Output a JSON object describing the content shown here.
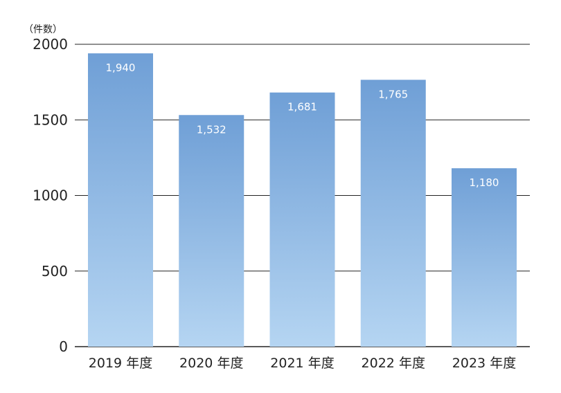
{
  "chart_data": {
    "type": "bar",
    "unit_label": "（件数）",
    "categories": [
      "2019 年度",
      "2020 年度",
      "2021 年度",
      "2022 年度",
      "2023 年度"
    ],
    "values": [
      1940,
      1532,
      1681,
      1765,
      1180
    ],
    "data_labels": [
      "1,940",
      "1,532",
      "1,681",
      "1,765",
      "1,180"
    ],
    "y_ticks": [
      0,
      500,
      1000,
      1500,
      2000
    ],
    "y_tick_labels": [
      "0",
      "500",
      "1000",
      "1500",
      "2000"
    ],
    "ylim": [
      0,
      2000
    ],
    "grid": true,
    "colors": {
      "bar_top": "#6f9fd6",
      "bar_bottom": "#b5d5f2",
      "grid": "#222222",
      "label": "#ffffff"
    }
  }
}
